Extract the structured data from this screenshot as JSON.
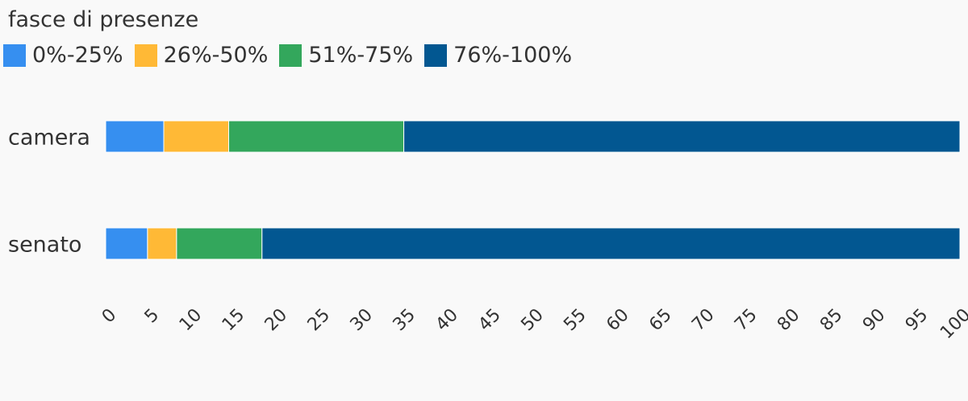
{
  "chart_data": {
    "type": "bar",
    "orientation": "horizontal",
    "stacked": true,
    "legend_title": "fasce di presenze",
    "legend_position": "top-left",
    "categories": [
      "camera",
      "senato"
    ],
    "series": [
      {
        "name": "0%-25%",
        "color": "#368ff0",
        "values": [
          6.8,
          4.9
        ]
      },
      {
        "name": "26%-50%",
        "color": "#ffb936",
        "values": [
          7.6,
          3.4
        ]
      },
      {
        "name": "51%-75%",
        "color": "#33a75c",
        "values": [
          20.5,
          10.0
        ]
      },
      {
        "name": "76%-100%",
        "color": "#025791",
        "values": [
          65.1,
          81.7
        ]
      }
    ],
    "xlim": [
      0,
      100
    ],
    "xticks": [
      "0",
      "5",
      "10",
      "15",
      "20",
      "25",
      "30",
      "35",
      "40",
      "45",
      "50",
      "55",
      "60",
      "65",
      "70",
      "75",
      "80",
      "85",
      "90",
      "95",
      "100"
    ],
    "grid": false
  }
}
